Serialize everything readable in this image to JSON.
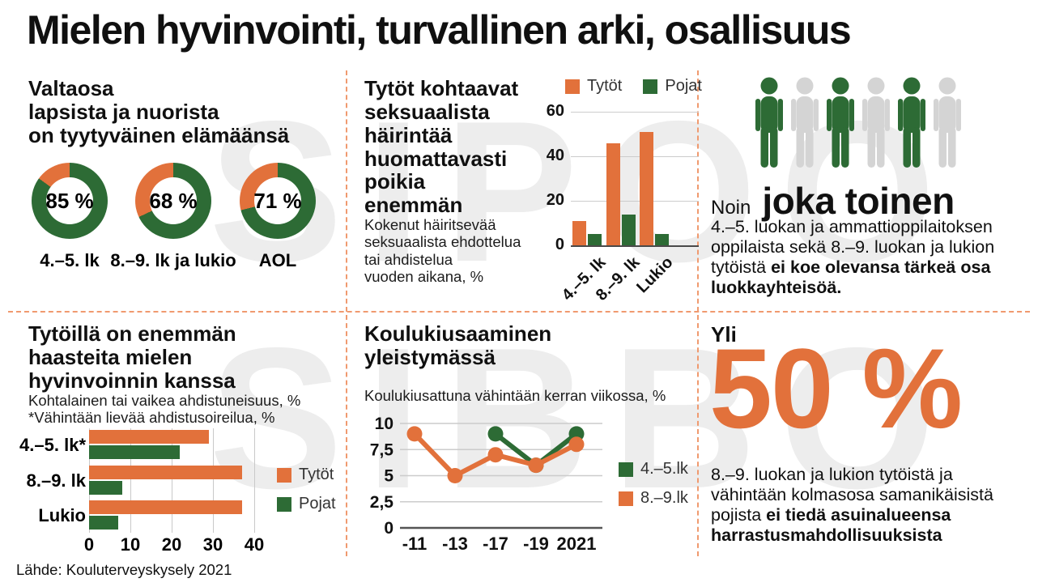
{
  "page": {
    "title": "Mielen hyvinvointi, turvallinen arki, osallisuus",
    "source": "Lähde: Kouluterveyskysely 2021",
    "watermark_line1": "SIPOO",
    "watermark_line2": "SIBBO"
  },
  "colors": {
    "orange": "#e2713b",
    "green": "#2d6b35",
    "person_gray": "#d4d4d4",
    "watermark_gray": "#ededed",
    "divider_orange": "#f09a6f",
    "gridline_gray": "#cccccc",
    "axis_dark": "#4a4a4a"
  },
  "panel_satisfaction": {
    "heading": "Valtaosa\nlapsista ja nuorista\non tyytyväinen elämäänsä"
  },
  "panel_harassment": {
    "heading": "Tytöt kohtaavat\nseksuaalista\nhäirintää\nhuomattavasti\npoikia\nenemmän",
    "subtitle": "Kokenut häiritsevää\nseksuaalista ehdottelua\ntai ahdistelua\nvuoden aikana, %"
  },
  "panel_class_community": {
    "icons": [
      "green",
      "gray",
      "green",
      "gray",
      "green",
      "gray"
    ],
    "lead_small": "Noin",
    "lead_big": "joka toinen",
    "text": "4.–5. luokan ja ammattioppilaitoksen oppilaista sekä 8.–9. luokan ja lukion tytöistä ",
    "text_bold": "ei koe olevansa tärkeä osa luokkayhteisöä."
  },
  "panel_anxiety": {
    "heading": "Tytöillä on enemmän\nhaasteita mielen\nhyvinvoinnin kanssa",
    "subtitle": "Kohtalainen tai vaikea ahdistuneisuus, %\n*Vähintään lievää ahdistusoireilua, %"
  },
  "panel_bullying": {
    "heading": "Koulukiusaaminen\nyleistymässä",
    "subtitle": "Koulukiusattuna vähintään kerran viikossa, %"
  },
  "panel_hobbies": {
    "lead_small": "Yli",
    "lead_big": "50 %",
    "text": "8.–9. luokan ja lukion tytöistä ja vähintään kolmasosa samanikäisistä pojista ",
    "text_bold": "ei tiedä asuinalueensa harrastusmahdollisuuksista"
  },
  "chart_data": [
    {
      "id": "life_satisfaction_donuts",
      "type": "pie",
      "title": "Valtaosa lapsista ja nuorista on tyytyväinen elämäänsä",
      "donuts": [
        {
          "label": "4.–5. lk",
          "value": 85,
          "display": "85 %"
        },
        {
          "label": "8.–9. lk ja lukio",
          "value": 68,
          "display": "68 %"
        },
        {
          "label": "AOL",
          "value": 71,
          "display": "71 %"
        }
      ]
    },
    {
      "id": "harassment_bars",
      "type": "bar",
      "title": "Tytöt kohtaavat seksuaalista häirintää huomattavasti poikia enemmän",
      "categories": [
        "4.–5. lk",
        "8.–9. lk",
        "Lukio"
      ],
      "series": [
        {
          "name": "Tytöt",
          "color_key": "orange",
          "values": [
            11,
            46,
            51
          ]
        },
        {
          "name": "Pojat",
          "color_key": "green",
          "values": [
            5,
            14,
            5
          ]
        }
      ],
      "yticks": [
        0,
        20,
        40,
        60
      ],
      "ylim": [
        0,
        60
      ],
      "legend_position": "top"
    },
    {
      "id": "anxiety_bars",
      "type": "bar",
      "orientation": "horizontal",
      "title": "Tytöillä on enemmän haasteita mielen hyvinvoinnin kanssa",
      "categories": [
        "4.–5. lk*",
        "8.–9. lk",
        "Lukio"
      ],
      "series": [
        {
          "name": "Tytöt",
          "color_key": "orange",
          "values": [
            29,
            37,
            37
          ]
        },
        {
          "name": "Pojat",
          "color_key": "green",
          "values": [
            22,
            8,
            7
          ]
        }
      ],
      "xticks": [
        0,
        10,
        20,
        30,
        40
      ],
      "xlim": [
        0,
        40
      ],
      "legend_position": "right"
    },
    {
      "id": "bullying_lines",
      "type": "line",
      "title": "Koulukiusaaminen yleistymässä",
      "x": [
        "-11",
        "-13",
        "-17",
        "-19",
        "2021"
      ],
      "series": [
        {
          "name": "4.–5.lk",
          "color_key": "green",
          "values": [
            null,
            null,
            9,
            6,
            9
          ]
        },
        {
          "name": "8.–9.lk",
          "color_key": "orange",
          "values": [
            9,
            5,
            7,
            6,
            8
          ]
        }
      ],
      "yticks": [
        "0",
        "2,5",
        "5",
        "7,5",
        "10"
      ],
      "ytick_values": [
        0,
        2.5,
        5,
        7.5,
        10
      ],
      "ylim": [
        0,
        10
      ],
      "legend_position": "right"
    }
  ]
}
